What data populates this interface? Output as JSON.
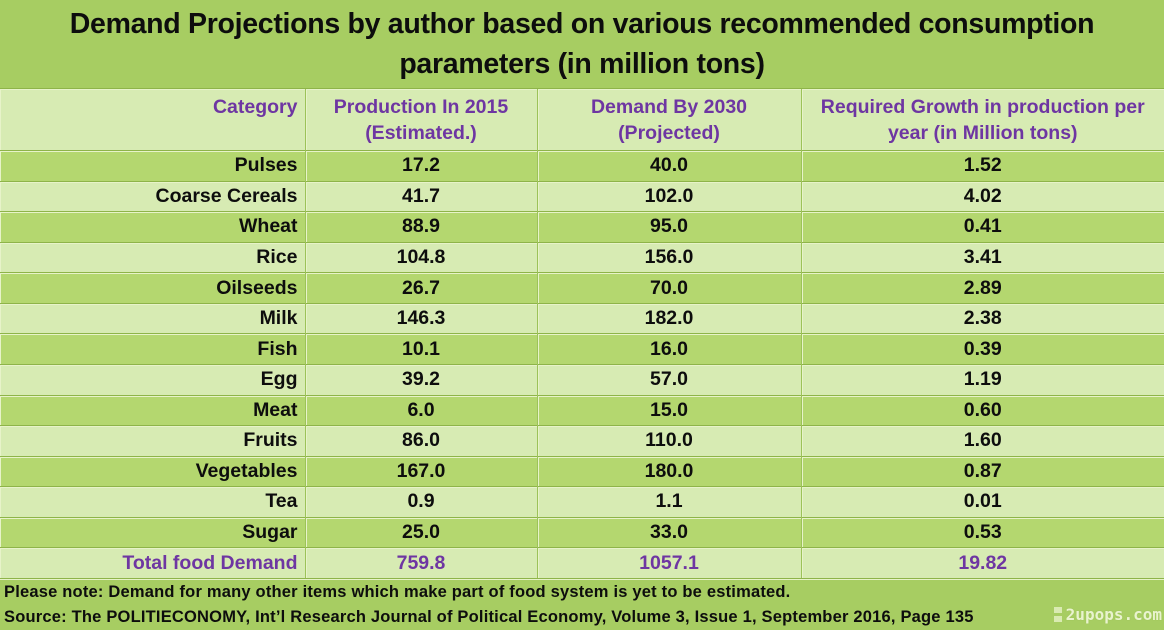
{
  "title": {
    "line1": "Demand Projections by author based on various recommended consumption",
    "line2": "parameters (in million tons)"
  },
  "table": {
    "headers": [
      {
        "line1": "Category",
        "line2": ""
      },
      {
        "line1": "Production In 2015",
        "line2": "(Estimated.)"
      },
      {
        "line1": "Demand By 2030",
        "line2": "(Projected)"
      },
      {
        "line1": "Required Growth in production per",
        "line2": "year (in Million tons)"
      }
    ],
    "rows": [
      {
        "category": "Pulses",
        "production_2015": "17.2",
        "demand_2030": "40.0",
        "required_growth": "1.52"
      },
      {
        "category": "Coarse Cereals",
        "production_2015": "41.7",
        "demand_2030": "102.0",
        "required_growth": "4.02"
      },
      {
        "category": "Wheat",
        "production_2015": "88.9",
        "demand_2030": "95.0",
        "required_growth": "0.41"
      },
      {
        "category": "Rice",
        "production_2015": "104.8",
        "demand_2030": "156.0",
        "required_growth": "3.41"
      },
      {
        "category": "Oilseeds",
        "production_2015": "26.7",
        "demand_2030": "70.0",
        "required_growth": "2.89"
      },
      {
        "category": "Milk",
        "production_2015": "146.3",
        "demand_2030": "182.0",
        "required_growth": "2.38"
      },
      {
        "category": "Fish",
        "production_2015": "10.1",
        "demand_2030": "16.0",
        "required_growth": "0.39"
      },
      {
        "category": "Egg",
        "production_2015": "39.2",
        "demand_2030": "57.0",
        "required_growth": "1.19"
      },
      {
        "category": "Meat",
        "production_2015": "6.0",
        "demand_2030": "15.0",
        "required_growth": "0.60"
      },
      {
        "category": "Fruits",
        "production_2015": "86.0",
        "demand_2030": "110.0",
        "required_growth": "1.60"
      },
      {
        "category": "Vegetables",
        "production_2015": "167.0",
        "demand_2030": "180.0",
        "required_growth": "0.87"
      },
      {
        "category": "Tea",
        "production_2015": "0.9",
        "demand_2030": "1.1",
        "required_growth": "0.01"
      },
      {
        "category": "Sugar",
        "production_2015": "25.0",
        "demand_2030": "33.0",
        "required_growth": "0.53"
      },
      {
        "category": "Total food Demand",
        "production_2015": "759.8",
        "demand_2030": "1057.1",
        "required_growth": "19.82"
      }
    ]
  },
  "footer": {
    "note": "Please note: Demand for many other items which make part of food system is yet to be estimated.",
    "source": "Source: The POLITIECONOMY, Int’l Research Journal of Political Economy, Volume 3, Issue 1, September 2016, Page 135"
  },
  "watermark": {
    "text": "2upops.com"
  },
  "colors": {
    "title_background": "#a7cd62",
    "row_dark": "#b4d76f",
    "row_light": "#d7ebb3",
    "header_text_purple": "#6e36a2",
    "body_text": "#0d0d0d",
    "gridline_dark": "#8eb449",
    "gridline_light": "#e7f3c9"
  },
  "chart_data": {
    "type": "table",
    "title": "Demand Projections by author based on various recommended consumption parameters (in million tons)",
    "columns": [
      "Category",
      "Production In 2015 (Estimated.)",
      "Demand By 2030 (Projected)",
      "Required Growth in production per year (in Million tons)"
    ],
    "rows": [
      [
        "Pulses",
        17.2,
        40.0,
        1.52
      ],
      [
        "Coarse Cereals",
        41.7,
        102.0,
        4.02
      ],
      [
        "Wheat",
        88.9,
        95.0,
        0.41
      ],
      [
        "Rice",
        104.8,
        156.0,
        3.41
      ],
      [
        "Oilseeds",
        26.7,
        70.0,
        2.89
      ],
      [
        "Milk",
        146.3,
        182.0,
        2.38
      ],
      [
        "Fish",
        10.1,
        16.0,
        0.39
      ],
      [
        "Egg",
        39.2,
        57.0,
        1.19
      ],
      [
        "Meat",
        6.0,
        15.0,
        0.6
      ],
      [
        "Fruits",
        86.0,
        110.0,
        1.6
      ],
      [
        "Vegetables",
        167.0,
        180.0,
        0.87
      ],
      [
        "Tea",
        0.9,
        1.1,
        0.01
      ],
      [
        "Sugar",
        25.0,
        33.0,
        0.53
      ],
      [
        "Total food Demand",
        759.8,
        1057.1,
        19.82
      ]
    ],
    "notes": [
      "Please note: Demand for many other items which make part of food system is yet to be estimated.",
      "Source: The POLITIECONOMY, Int’l Research Journal of Political Economy, Volume 3, Issue 1, September 2016, Page 135"
    ]
  }
}
